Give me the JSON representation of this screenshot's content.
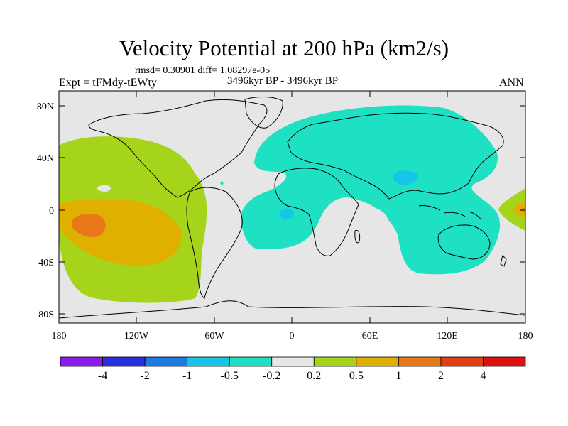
{
  "header": {
    "title": "Velocity Potential at 200 hPa (km2/s)",
    "stats": "rmsd= 0.30901  diff= 1.08297e-05",
    "period": "3496kyr BP - 3496kyr BP",
    "experiment": "Expt = tFMdy-tEWty",
    "season": "ANN"
  },
  "map": {
    "lat_ticks": [
      "80N",
      "40N",
      "0",
      "40S",
      "80S"
    ],
    "lon_ticks": [
      "180",
      "120W",
      "60W",
      "0",
      "60E",
      "120E",
      "180"
    ],
    "background_color": "#e6e6e6"
  },
  "colorbar": {
    "labels": [
      "-4",
      "-2",
      "-1",
      "-0.5",
      "-0.2",
      "0.2",
      "0.5",
      "1",
      "2",
      "4"
    ],
    "colors": [
      "#8a1be8",
      "#2a2ee0",
      "#1d7ae0",
      "#17c6e6",
      "#1ee0c2",
      "#e6e6e6",
      "#a6d41a",
      "#e0b000",
      "#e8781a",
      "#e04010",
      "#e01010"
    ]
  },
  "chart_data": {
    "type": "map",
    "title": "Velocity Potential at 200 hPa (km2/s)",
    "units": "km2/s",
    "contour_levels": [
      -4,
      -2,
      -1,
      -0.5,
      -0.2,
      0.2,
      0.5,
      1,
      2,
      4
    ],
    "lon_range": [
      -180,
      180
    ],
    "lat_range": [
      -90,
      90
    ]
  }
}
